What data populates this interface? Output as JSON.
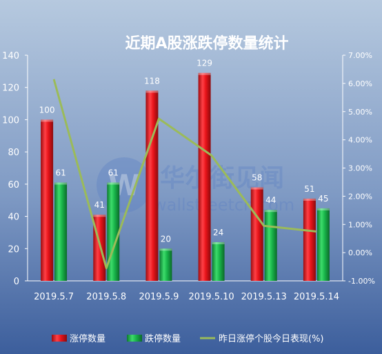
{
  "chart_data": {
    "type": "bar",
    "title": "近期A股涨跌停数量统计",
    "categories": [
      "2019.5.7",
      "2019.5.8",
      "2019.5.9",
      "2019.5.10",
      "2019.5.13",
      "2019.5.14"
    ],
    "series": [
      {
        "name": "涨停数量",
        "kind": "bar",
        "axis": "left",
        "color": "#e8141a",
        "values": [
          100,
          41,
          118,
          129,
          58,
          51
        ]
      },
      {
        "name": "跌停数量",
        "kind": "bar",
        "axis": "left",
        "color": "#19b54a",
        "values": [
          61,
          61,
          20,
          24,
          44,
          45
        ]
      },
      {
        "name": "昨日涨停个股今日表现(%)",
        "kind": "line",
        "axis": "right",
        "color": "#9bbb59",
        "values": [
          6.15,
          -0.55,
          4.75,
          3.45,
          0.95,
          0.75
        ]
      }
    ],
    "y_left": {
      "min": 0,
      "max": 140,
      "ticks": [
        "0",
        "20",
        "40",
        "60",
        "80",
        "100",
        "120",
        "140"
      ]
    },
    "y_right": {
      "min": -1,
      "max": 7,
      "ticks": [
        "-1.00%",
        "0.00%",
        "1.00%",
        "2.00%",
        "3.00%",
        "4.00%",
        "5.00%",
        "6.00%",
        "7.00%"
      ]
    },
    "grid": false,
    "legend_position": "bottom"
  },
  "watermark": {
    "cn": "华尔街见闻",
    "en": "wallstreetcn.com"
  },
  "colors": {
    "bg_top": "#b3c6de",
    "bg_bottom": "#3f62a0",
    "axis": "#ffffff",
    "text": "#ffffff"
  }
}
